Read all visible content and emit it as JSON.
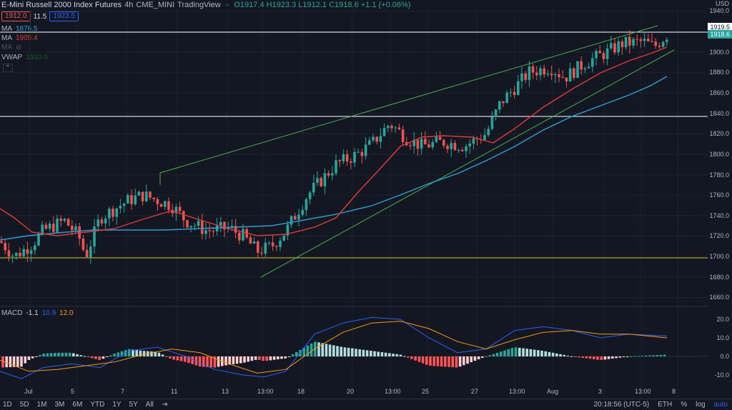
{
  "header": {
    "symbol": "E-Mini Russell 2000 Index Futures",
    "interval": "4h",
    "exchange": "CME_MINI",
    "source": "TradingView",
    "ohlc": "O1917.4 H1923.3 L1912.1 C1918.6 +1.1 (+0.06%)",
    "sell_price": "1912.0",
    "spread": "11.5",
    "buy_price": "1923.5"
  },
  "legend": {
    "ma1_label": "MA",
    "ma1_value": "1876.5",
    "ma2_label": "MA",
    "ma2_value": "1905.4",
    "ma3_label": "MA",
    "vwap_label": "VWAP",
    "vwap_value": "1910.0"
  },
  "price_axis": {
    "currency": "USD",
    "ticks": [
      "1940.0",
      "1900.0",
      "1880.0",
      "1860.0",
      "1840.0",
      "1820.0",
      "1800.0",
      "1780.0",
      "1760.0",
      "1740.0",
      "1720.0",
      "1700.0",
      "1680.0",
      "1660.0"
    ],
    "last_tag": "1919.5",
    "current_tag": "1918.6"
  },
  "macd": {
    "label": "MACD",
    "v1": "-1.1",
    "v2": "10.9",
    "v3": "12.0",
    "ticks": [
      "20.0",
      "10.0",
      "0.0",
      "-10.0"
    ]
  },
  "time_axis": {
    "ticks": [
      "Jul",
      "5",
      "7",
      "11",
      "13",
      "13:00",
      "18",
      "20",
      "13:00",
      "25",
      "27",
      "13:00",
      "Aug",
      "3",
      "13:00",
      "8"
    ]
  },
  "toolbar": {
    "timeframes": [
      "1D",
      "5D",
      "1M",
      "3M",
      "6M",
      "YTD",
      "1Y",
      "5Y",
      "All"
    ],
    "clock": "20:18:56 (UTC-5)",
    "session": "ETH",
    "percent": "%",
    "log": "log",
    "auto": "auto"
  },
  "colors": {
    "up": "#26a69a",
    "down": "#ef5350",
    "ma_blue": "#2b9fd6",
    "ma_red": "#e53935",
    "trend_green": "#4caf50",
    "support_yellow": "#d4c02a",
    "macd_line": "#2962ff",
    "signal_line": "#ff9800"
  },
  "chart_data": {
    "type": "candlestick",
    "ylim": [
      1660,
      1945
    ],
    "horizontal_levels": [
      1937,
      1838,
      1703
    ],
    "macd_ylim": [
      -15,
      25
    ]
  }
}
